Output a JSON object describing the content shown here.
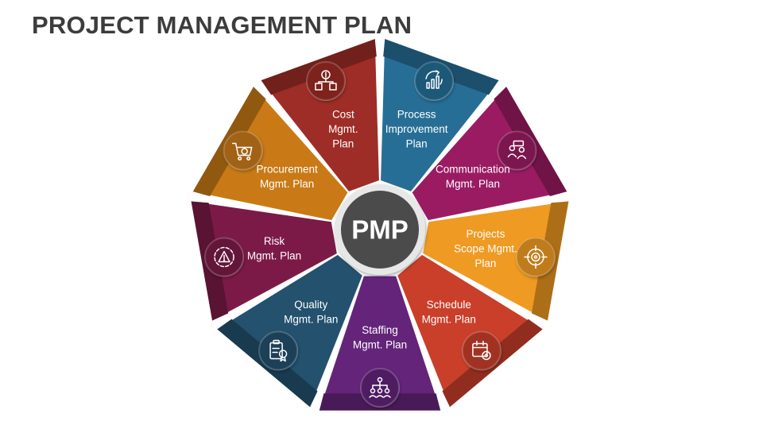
{
  "title": "PROJECT MANAGEMENT PLAN",
  "center": {
    "label": "PMP"
  },
  "segments": [
    {
      "lines": [
        "Process",
        "Improvement",
        "Plan"
      ],
      "color": "#276E96",
      "icon": "chart-arrows-icon"
    },
    {
      "lines": [
        "Communication",
        "Mgmt. Plan"
      ],
      "color": "#9B1B63",
      "icon": "people-chat-icon"
    },
    {
      "lines": [
        "Projects",
        "Scope Mgmt.",
        "Plan"
      ],
      "color": "#EF9A22",
      "icon": "target-icon"
    },
    {
      "lines": [
        "Schedule",
        "Mgmt. Plan"
      ],
      "color": "#C93F2A",
      "icon": "calendar-gear-icon"
    },
    {
      "lines": [
        "Staffing",
        "Mgmt. Plan"
      ],
      "color": "#64247A",
      "icon": "org-chart-icon"
    },
    {
      "lines": [
        "Quality",
        "Mgmt. Plan"
      ],
      "color": "#23516E",
      "icon": "clipboard-badge-icon"
    },
    {
      "lines": [
        "Risk",
        "Mgmt.  Plan"
      ],
      "color": "#7C1A47",
      "icon": "warning-gear-icon"
    },
    {
      "lines": [
        "Procurement",
        "Mgmt.  Plan"
      ],
      "color": "#C97A16",
      "icon": "cart-gear-icon"
    },
    {
      "lines": [
        "Cost",
        "Mgmt.",
        "Plan"
      ],
      "color": "#9E2D27",
      "icon": "money-flow-icon"
    }
  ]
}
